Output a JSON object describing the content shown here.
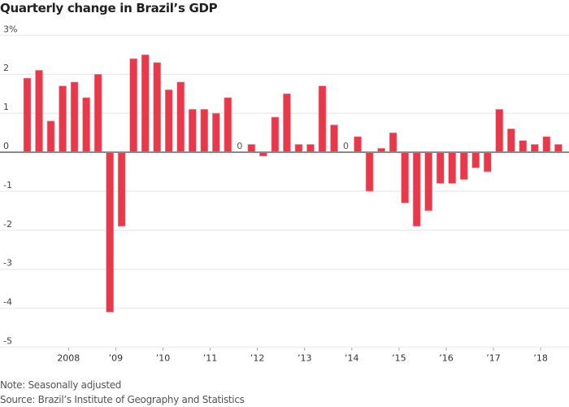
{
  "chart_data": {
    "type": "bar",
    "title": "Quarterly change in Brazil’s GDP",
    "xlabel": "",
    "ylabel": "",
    "ylim": [
      -5,
      3
    ],
    "y_ticks": [
      "3%",
      "2",
      "1",
      "0",
      "-1",
      "-2",
      "-3",
      "-4",
      "-5"
    ],
    "y_tick_values": [
      3,
      2,
      1,
      0,
      -1,
      -2,
      -3,
      -4,
      -5
    ],
    "x_tick_labels": [
      "2008",
      "’09",
      "’10",
      "’11",
      "’12",
      "’13",
      "’14",
      "’15",
      "’16",
      "’17",
      "’18"
    ],
    "grid": true,
    "bar_color": "#e8394a",
    "first_quarter": "2007 Q1",
    "last_quarter": "2018 Q2",
    "categories": [
      "2007Q1",
      "2007Q2",
      "2007Q3",
      "2007Q4",
      "2008Q1",
      "2008Q2",
      "2008Q3",
      "2008Q4",
      "2009Q1",
      "2009Q2",
      "2009Q3",
      "2009Q4",
      "2010Q1",
      "2010Q2",
      "2010Q3",
      "2010Q4",
      "2011Q1",
      "2011Q2",
      "2011Q3",
      "2011Q4",
      "2012Q1",
      "2012Q2",
      "2012Q3",
      "2012Q4",
      "2013Q1",
      "2013Q2",
      "2013Q3",
      "2013Q4",
      "2014Q1",
      "2014Q2",
      "2014Q3",
      "2014Q4",
      "2015Q1",
      "2015Q2",
      "2015Q3",
      "2015Q4",
      "2016Q1",
      "2016Q2",
      "2016Q3",
      "2016Q4",
      "2017Q1",
      "2017Q2",
      "2017Q3",
      "2017Q4",
      "2018Q1",
      "2018Q2"
    ],
    "values": [
      1.9,
      2.1,
      0.8,
      1.7,
      1.8,
      1.4,
      2.0,
      -4.1,
      -1.9,
      2.4,
      2.5,
      2.3,
      1.6,
      1.8,
      1.1,
      1.1,
      1.0,
      1.4,
      0,
      0.2,
      -0.1,
      0.9,
      1.5,
      0.2,
      0.2,
      1.7,
      0.7,
      0,
      0.4,
      -1.0,
      0.1,
      0.5,
      -1.3,
      -1.9,
      -1.5,
      -0.8,
      -0.8,
      -0.7,
      -0.4,
      -0.5,
      1.1,
      0.6,
      0.3,
      0.2,
      0.4,
      0.2
    ],
    "zero_labels": [
      "0",
      "0"
    ],
    "zero_label_quarters": [
      "2011Q3",
      "2013Q4"
    ]
  },
  "footer": {
    "note": "Note: Seasonally adjusted",
    "source": "Source: Brazil’s Institute of Geography and Statistics"
  }
}
